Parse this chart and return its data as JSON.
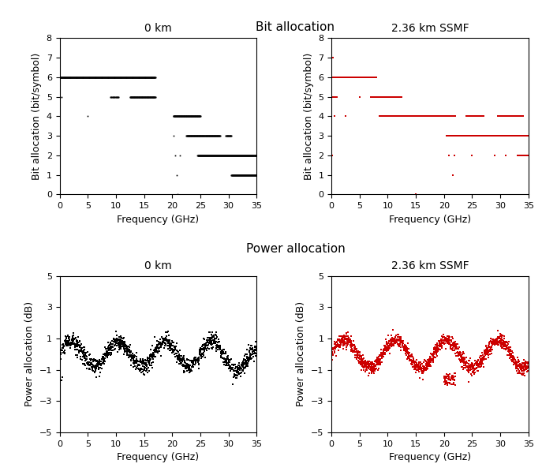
{
  "title_bit": "Bit allocation",
  "title_power": "Power allocation",
  "subplot_titles": [
    "0 km",
    "2.36 km SSMF",
    "0 km",
    "2.36 km SSMF"
  ],
  "xlabel": "Frequency (GHz)",
  "ylabel_bit": "Bit allocation (bit/symbol)",
  "ylabel_power": "Power allocation (dB)",
  "xlim": [
    0,
    35
  ],
  "bit_ylim": [
    0,
    8
  ],
  "power_ylim": [
    -5,
    5
  ],
  "bit_yticks": [
    0,
    1,
    2,
    3,
    4,
    5,
    6,
    7,
    8
  ],
  "power_yticks": [
    -5,
    -3,
    -1,
    1,
    3,
    5
  ],
  "xticks": [
    0,
    5,
    10,
    15,
    20,
    25,
    30,
    35
  ],
  "color_black": "#000000",
  "color_red": "#cc0000"
}
